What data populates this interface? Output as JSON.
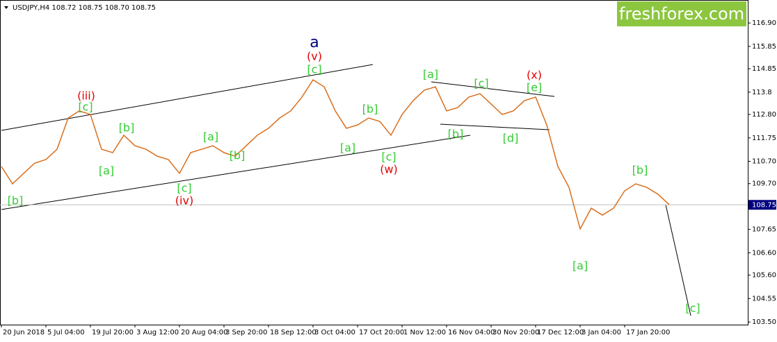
{
  "chart_data": {
    "type": "line",
    "title": "USDJPY,H4  108.72 108.75 108.70 108.75",
    "logo": "freshforex.com",
    "categories": [
      "20 Jun 2018",
      null,
      null,
      null,
      "5 Jul 04:00",
      null,
      null,
      null,
      "19 Jul 20:00",
      null,
      null,
      null,
      "3 Aug 12:00",
      null,
      null,
      null,
      "20 Aug 04:00",
      null,
      null,
      null,
      "3 Sep 20:00",
      null,
      null,
      null,
      "18 Sep 12:00",
      null,
      null,
      null,
      "3 Oct 04:00",
      null,
      null,
      null,
      "17 Oct 20:00",
      null,
      null,
      null,
      "1 Nov 12:00",
      null,
      null,
      null,
      "16 Nov 04:00",
      null,
      null,
      null,
      "30 Nov 20:00",
      null,
      null,
      null,
      "17 Dec 12:00",
      null,
      null,
      null,
      "3 Jan 04:00",
      null,
      null,
      null,
      "17 Jan 20:00",
      null,
      null,
      null,
      null
    ],
    "series": [
      {
        "name": "USDJPY",
        "color": "#d86f1e",
        "values": [
          110.47,
          109.69,
          110.16,
          110.62,
          110.78,
          111.24,
          112.64,
          112.96,
          112.8,
          111.24,
          111.09,
          111.87,
          111.4,
          111.24,
          110.93,
          110.78,
          110.16,
          111.09,
          111.24,
          111.4,
          111.09,
          110.93,
          111.4,
          111.87,
          112.18,
          112.64,
          112.96,
          113.58,
          114.35,
          114.04,
          112.96,
          112.18,
          112.33,
          112.64,
          112.49,
          111.87,
          112.8,
          113.42,
          113.89,
          114.04,
          112.96,
          113.11,
          113.58,
          113.73,
          113.27,
          112.8,
          112.96,
          113.42,
          113.58,
          112.33,
          110.47,
          109.53,
          107.67,
          108.6,
          108.29,
          108.6,
          109.38,
          109.69,
          109.53,
          109.22,
          108.76
        ]
      }
    ],
    "last_price": 108.75,
    "ylim": [
      103.38,
      117.93
    ],
    "yticks": [
      {
        "value": 116.9,
        "label": "116.90"
      },
      115.85,
      114.85,
      113.8,
      {
        "value": 112.8,
        "label": "112.80"
      },
      111.75,
      {
        "value": 110.7,
        "label": "110.70"
      },
      {
        "value": 109.7,
        "label": "109.70"
      },
      107.65,
      {
        "value": 106.6,
        "label": "106.60"
      },
      {
        "value": 105.6,
        "label": "105.60"
      },
      104.55,
      {
        "value": 103.5,
        "label": "103.50"
      }
    ],
    "annotations": [
      {
        "text": "a",
        "color": "#00007a"
      },
      {
        "text": "(v)",
        "color": "#e00000"
      },
      {
        "text": "[c]",
        "color": "#33cc33"
      },
      {
        "text": "(iii)",
        "color": "#e00000"
      },
      {
        "text": "[c]",
        "color": "#33cc33"
      },
      {
        "text": "[b]",
        "color": "#33cc33"
      },
      {
        "text": "[a]",
        "color": "#33cc33"
      },
      {
        "text": "[b]",
        "color": "#33cc33"
      },
      {
        "text": "[c]",
        "color": "#33cc33"
      },
      {
        "text": "(iv)",
        "color": "#e00000"
      },
      {
        "text": "[a]",
        "color": "#33cc33"
      },
      {
        "text": "[b]",
        "color": "#33cc33"
      },
      {
        "text": "[a]",
        "color": "#33cc33"
      },
      {
        "text": "[b]",
        "color": "#33cc33"
      },
      {
        "text": "[c]",
        "color": "#33cc33"
      },
      {
        "text": "(w)",
        "color": "#e00000"
      },
      {
        "text": "[a]",
        "color": "#33cc33"
      },
      {
        "text": "[b]",
        "color": "#33cc33"
      },
      {
        "text": "[c]",
        "color": "#33cc33"
      },
      {
        "text": "(x)",
        "color": "#e00000"
      },
      {
        "text": "[e]",
        "color": "#33cc33"
      },
      {
        "text": "[d]",
        "color": "#33cc33"
      },
      {
        "text": "[a]",
        "color": "#33cc33"
      },
      {
        "text": "[b]",
        "color": "#33cc33"
      },
      {
        "text": "[c]",
        "color": "#33cc33"
      }
    ]
  }
}
